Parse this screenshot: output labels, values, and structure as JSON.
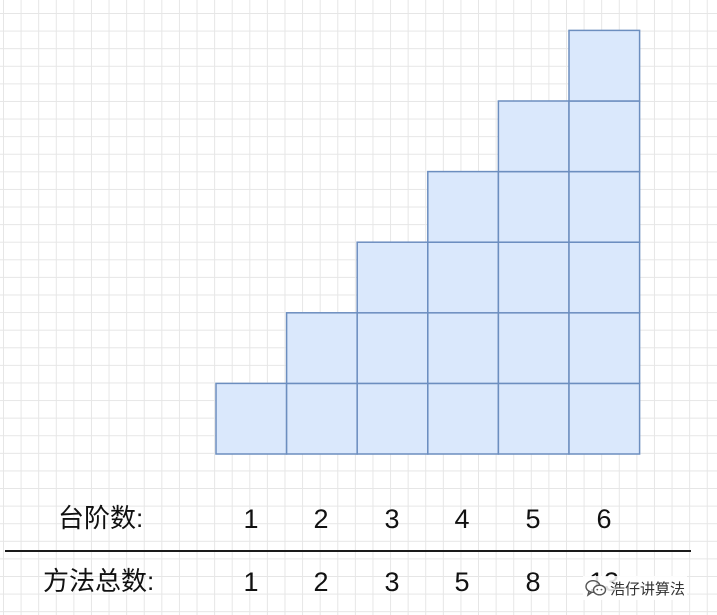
{
  "rows": {
    "steps": {
      "label": "台阶数:",
      "values": [
        "1",
        "2",
        "3",
        "4",
        "5",
        "6"
      ]
    },
    "methods": {
      "label": "方法总数:",
      "values": [
        "1",
        "2",
        "3",
        "5",
        "8",
        "13"
      ]
    }
  },
  "staircase": {
    "column_heights": [
      1,
      2,
      3,
      4,
      5,
      6
    ],
    "fill_color": "#dae8fc",
    "stroke_color": "#6c8ebf"
  },
  "watermark": {
    "icon": "wechat-icon",
    "text": "浩仔讲算法"
  }
}
